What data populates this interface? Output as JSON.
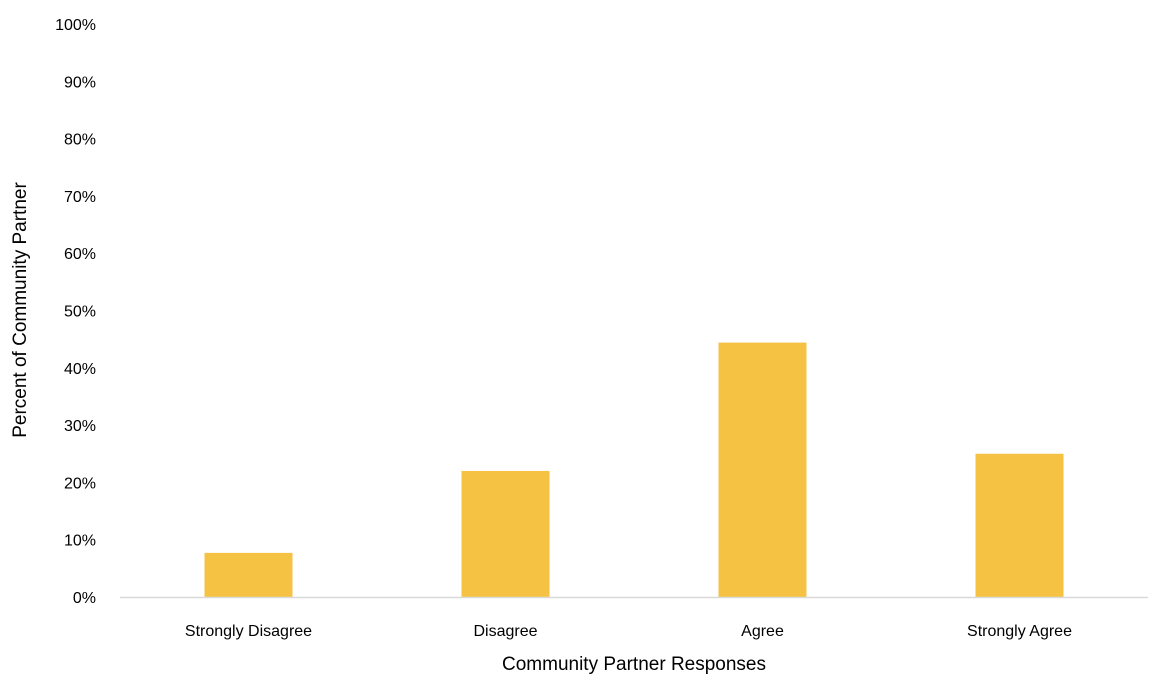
{
  "chart_data": {
    "type": "bar",
    "title": "",
    "xlabel": "Community Partner Responses",
    "ylabel": "Percent of Community Partner",
    "categories": [
      "Strongly Disagree",
      "Disagree",
      "Agree",
      "Strongly Agree"
    ],
    "series": [
      {
        "values": [
          7.7,
          22.0,
          44.4,
          25.0
        ]
      }
    ],
    "ylim": [
      0,
      100
    ],
    "yticks": [
      "0%",
      "10%",
      "20%",
      "30%",
      "40%",
      "50%",
      "60%",
      "70%",
      "80%",
      "90%",
      "100%"
    ],
    "grid": false,
    "legend": "none",
    "bar_color": "#f5c244"
  }
}
